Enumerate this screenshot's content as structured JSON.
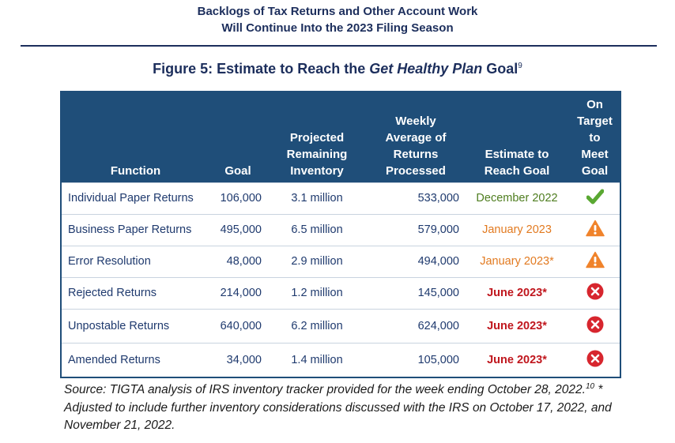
{
  "header": {
    "line1": "Backlogs of Tax Returns and Other Account Work",
    "line2": "Will Continue Into the 2023 Filing Season"
  },
  "figure": {
    "label": "Figure 5:  Estimate to Reach the ",
    "italic": "Get Healthy Plan",
    "suffix": " Goal",
    "footnote": "9"
  },
  "table": {
    "headers": {
      "function": "Function",
      "goal": "Goal",
      "inventory": "Projected Remaining Inventory",
      "weekly": "Weekly Average of Returns Processed",
      "estimate": "Estimate to Reach Goal",
      "target": "On Target to Meet Goal"
    },
    "rows": [
      {
        "function": "Individual Paper Returns",
        "goal": "106,000",
        "inventory": "3.1 million",
        "weekly": "533,000",
        "estimate": "December 2022",
        "status": "check-icon"
      },
      {
        "function": "Business Paper Returns",
        "goal": "495,000",
        "inventory": "6.5 million",
        "weekly": "579,000",
        "estimate": "January 2023",
        "status": "warning-icon"
      },
      {
        "function": "Error Resolution",
        "goal": "48,000",
        "inventory": "2.9 million",
        "weekly": "494,000",
        "estimate": "January 2023*",
        "status": "warning-icon"
      },
      {
        "function": "Rejected Returns",
        "goal": "214,000",
        "inventory": "1.2 million",
        "weekly": "145,000",
        "estimate": "June 2023*",
        "status": "x-circle-icon"
      },
      {
        "function": "Unpostable Returns",
        "goal": "640,000",
        "inventory": "6.2 million",
        "weekly": "624,000",
        "estimate": "June 2023*",
        "status": "x-circle-icon"
      },
      {
        "function": "Amended Returns",
        "goal": "34,000",
        "inventory": "1.4 million",
        "weekly": "105,000",
        "estimate": "June 2023*",
        "status": "x-circle-icon"
      }
    ]
  },
  "source": {
    "part1": "Source:  TIGTA analysis of IRS inventory tracker provided for the week ending October 28, 2022.",
    "footnote": "10",
    "part2": "  * Adjusted to include further inventory considerations discussed with the IRS on October 17, 2022, and November 21, 2022."
  },
  "colors": {
    "header_bg": "#1f4e79",
    "green": "#4e7d1f",
    "orange": "#e27a20",
    "red": "#c0171e"
  }
}
